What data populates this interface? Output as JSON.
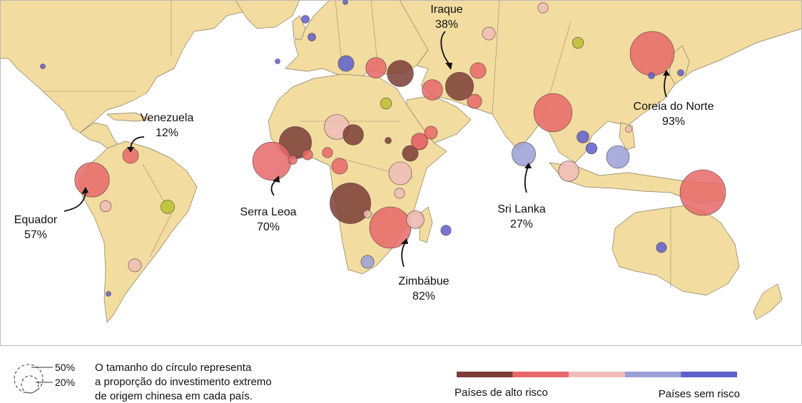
{
  "colors": {
    "high_risk": "#7b3d36",
    "elevated": "#e8696a",
    "moderate": "#f0bdb8",
    "low": "#9a9fd6",
    "no_risk": "#5d5fcb",
    "other": "#b7c22e",
    "land": "#f2dca0"
  },
  "callouts": [
    {
      "id": "venezuela",
      "name": "Venezuela",
      "pct": "12%"
    },
    {
      "id": "equador",
      "name": "Equador",
      "pct": "57%"
    },
    {
      "id": "serra-leoa",
      "name": "Serra Leoa",
      "pct": "70%"
    },
    {
      "id": "iraque",
      "name": "Iraque",
      "pct": "38%"
    },
    {
      "id": "sri-lanka",
      "name": "Sri Lanka",
      "pct": "27%"
    },
    {
      "id": "zimbabue",
      "name": "Zimbábue",
      "pct": "82%"
    },
    {
      "id": "coreia-do-norte",
      "name": "Coreia do Norte",
      "pct": "93%"
    }
  ],
  "bubbles": [
    {
      "name": "usa",
      "share": 0.01,
      "risk": "no_risk"
    },
    {
      "name": "venezuela",
      "share": 0.12,
      "risk": "elevated"
    },
    {
      "name": "ecuador",
      "share": 0.57,
      "risk": "elevated"
    },
    {
      "name": "peru",
      "share": 0.06,
      "risk": "moderate"
    },
    {
      "name": "brazil",
      "share": 0.09,
      "risk": "other"
    },
    {
      "name": "bolivia-paraguay",
      "share": 0.08,
      "risk": "moderate"
    },
    {
      "name": "argentina",
      "share": 0.01,
      "risk": "no_risk"
    },
    {
      "name": "uk",
      "share": 0.03,
      "risk": "no_risk"
    },
    {
      "name": "norway",
      "share": 0.03,
      "risk": "no_risk"
    },
    {
      "name": "finland",
      "share": 0.004,
      "risk": "no_risk"
    },
    {
      "name": "russia-west",
      "share": 0.05,
      "risk": "moderate"
    },
    {
      "name": "portugal",
      "share": 0.01,
      "risk": "no_risk"
    },
    {
      "name": "italy",
      "share": 0.12,
      "risk": "no_risk"
    },
    {
      "name": "ukraine",
      "share": 0.08,
      "risk": "moderate"
    },
    {
      "name": "greece",
      "share": 0.2,
      "risk": "elevated"
    },
    {
      "name": "turkey",
      "share": 0.33,
      "risk": "high_risk"
    },
    {
      "name": "syria",
      "share": 0.12,
      "risk": "elevated"
    },
    {
      "name": "iraq",
      "share": 0.38,
      "risk": "high_risk"
    },
    {
      "name": "iran",
      "share": 0.2,
      "risk": "elevated"
    },
    {
      "name": "pakistan",
      "share": 0.1,
      "risk": "elevated"
    },
    {
      "name": "mongolia",
      "share": 0.06,
      "risk": "other"
    },
    {
      "name": "north-korea",
      "share": 0.93,
      "risk": "elevated"
    },
    {
      "name": "japan",
      "share": 0.02,
      "risk": "no_risk"
    },
    {
      "name": "korea-south",
      "share": 0.02,
      "risk": "no_risk"
    },
    {
      "name": "india-bangladesh",
      "share": 0.7,
      "risk": "elevated"
    },
    {
      "name": "sri-lanka",
      "share": 0.27,
      "risk": "low"
    },
    {
      "name": "laos",
      "share": 0.07,
      "risk": "no_risk"
    },
    {
      "name": "vietnam",
      "share": 0.06,
      "risk": "no_risk"
    },
    {
      "name": "philippines-north",
      "share": 0.02,
      "risk": "moderate"
    },
    {
      "name": "borneo",
      "share": 0.25,
      "risk": "low"
    },
    {
      "name": "malaysia",
      "share": 0.2,
      "risk": "moderate"
    },
    {
      "name": "papua-new-guinea",
      "share": 1.0,
      "risk": "elevated"
    },
    {
      "name": "australia",
      "share": 0.05,
      "risk": "no_risk"
    },
    {
      "name": "egypt",
      "share": 0.06,
      "risk": "other"
    },
    {
      "name": "saudi-arabia",
      "share": 0.12,
      "risk": "elevated"
    },
    {
      "name": "oman",
      "share": 0.08,
      "risk": "elevated"
    },
    {
      "name": "mali",
      "share": 0.3,
      "risk": "moderate"
    },
    {
      "name": "niger",
      "share": 0.2,
      "risk": "high_risk"
    },
    {
      "name": "sudan",
      "share": 0.02,
      "risk": "high_risk"
    },
    {
      "name": "ethiopia",
      "share": 0.12,
      "risk": "high_risk"
    },
    {
      "name": "eritrea",
      "share": 0.13,
      "risk": "elevated"
    },
    {
      "name": "guinea",
      "share": 0.5,
      "risk": "high_risk"
    },
    {
      "name": "sierra-leone",
      "share": 0.7,
      "risk": "elevated"
    },
    {
      "name": "liberia",
      "share": 0.04,
      "risk": "elevated"
    },
    {
      "name": "ghana",
      "share": 0.05,
      "risk": "elevated"
    },
    {
      "name": "nigeria",
      "share": 0.05,
      "risk": "elevated"
    },
    {
      "name": "cameroon",
      "share": 0.12,
      "risk": "elevated"
    },
    {
      "name": "uganda",
      "share": 0.05,
      "risk": "moderate"
    },
    {
      "name": "kenya-tanzania",
      "share": 0.25,
      "risk": "moderate"
    },
    {
      "name": "tanzania",
      "share": 0.1,
      "risk": "moderate"
    },
    {
      "name": "drc",
      "share": 0.8,
      "risk": "high_risk"
    },
    {
      "name": "zimbabwe",
      "share": 0.82,
      "risk": "elevated"
    },
    {
      "name": "zambia",
      "share": 0.03,
      "risk": "moderate"
    },
    {
      "name": "mozambique",
      "share": 0.15,
      "risk": "moderate"
    },
    {
      "name": "madagascar",
      "share": 0.05,
      "risk": "no_risk"
    },
    {
      "name": "south-africa",
      "share": 0.08,
      "risk": "low"
    }
  ],
  "legend": {
    "size_label_large": "50%",
    "size_label_small": "20%",
    "size_text": [
      "O tamanho do círculo representa",
      "a proporção do investimento extremo",
      "de origem chinesa em cada país."
    ],
    "left_label": "Países de alto risco",
    "right_label": "Países sem risco",
    "scale": [
      "high_risk",
      "elevated",
      "moderate",
      "low",
      "no_risk"
    ]
  }
}
